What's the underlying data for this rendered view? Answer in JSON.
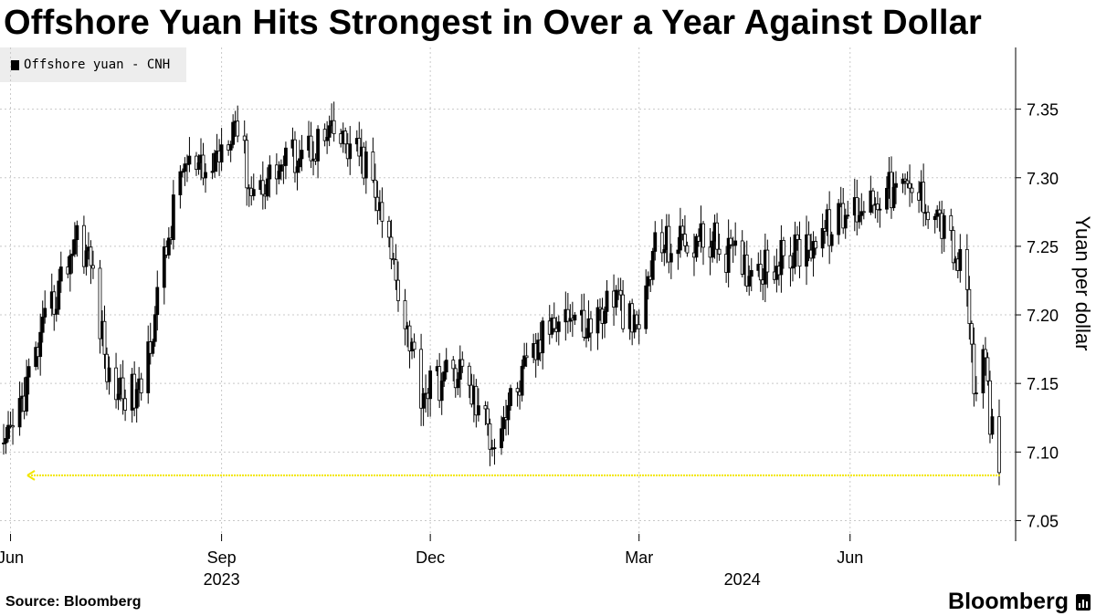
{
  "header": {
    "title": "Offshore Yuan Hits Strongest in Over a Year Against Dollar"
  },
  "legend": {
    "label": "Offshore yuan - CNH"
  },
  "footer": {
    "source": "Source: Bloomberg",
    "brand": "Bloomberg"
  },
  "colors": {
    "candle": "#000000",
    "reference_line": "#f2e600",
    "grid": "#c8c8c8",
    "legend_bg": "#ededed"
  },
  "chart_data": {
    "type": "candlestick",
    "title": "Offshore Yuan Hits Strongest in Over a Year Against Dollar",
    "series_name": "Offshore yuan - CNH",
    "ylabel": "Yuan per dollar",
    "y_axis_side": "right",
    "ylim": [
      7.035,
      7.395
    ],
    "yticks": [
      7.05,
      7.1,
      7.15,
      7.2,
      7.25,
      7.3,
      7.35
    ],
    "ytick_labels": [
      "7.05",
      "7.10",
      "7.15",
      "7.20",
      "7.25",
      "7.30",
      "7.35"
    ],
    "x_range": [
      "2023-05-29",
      "2024-08-05"
    ],
    "xticks": [
      {
        "date": "2023-06-01",
        "label": "Jun"
      },
      {
        "date": "2023-09-01",
        "label": "Sep"
      },
      {
        "date": "2023-12-01",
        "label": "Dec"
      },
      {
        "date": "2024-03-01",
        "label": "Mar"
      },
      {
        "date": "2024-06-01",
        "label": "Jun"
      }
    ],
    "year_labels": [
      {
        "year": "2023",
        "center_date": "2023-09-01"
      },
      {
        "year": "2024",
        "center_date": "2024-04-15"
      }
    ],
    "grid": {
      "x": "dotted",
      "y": "dotted"
    },
    "reference_line": {
      "value": 7.083,
      "style": "dotted",
      "note": "latest close level"
    },
    "anchors": [
      {
        "date": "2023-05-29",
        "close": 7.095
      },
      {
        "date": "2023-06-12",
        "close": 7.17
      },
      {
        "date": "2023-06-30",
        "close": 7.26
      },
      {
        "date": "2023-07-06",
        "close": 7.238
      },
      {
        "date": "2023-07-14",
        "close": 7.15
      },
      {
        "date": "2023-07-27",
        "close": 7.14
      },
      {
        "date": "2023-08-15",
        "close": 7.31
      },
      {
        "date": "2023-08-25",
        "close": 7.3
      },
      {
        "date": "2023-09-07",
        "close": 7.345
      },
      {
        "date": "2023-09-14",
        "close": 7.29
      },
      {
        "date": "2023-10-05",
        "close": 7.32
      },
      {
        "date": "2023-10-20",
        "close": 7.33
      },
      {
        "date": "2023-11-03",
        "close": 7.31
      },
      {
        "date": "2023-11-16",
        "close": 7.23
      },
      {
        "date": "2023-11-27",
        "close": 7.145
      },
      {
        "date": "2023-12-14",
        "close": 7.16
      },
      {
        "date": "2023-12-28",
        "close": 7.11
      },
      {
        "date": "2024-01-12",
        "close": 7.16
      },
      {
        "date": "2024-01-26",
        "close": 7.205
      },
      {
        "date": "2024-02-08",
        "close": 7.19
      },
      {
        "date": "2024-02-19",
        "close": 7.215
      },
      {
        "date": "2024-02-29",
        "close": 7.185
      },
      {
        "date": "2024-03-08",
        "close": 7.25
      },
      {
        "date": "2024-04-01",
        "close": 7.255
      },
      {
        "date": "2024-04-16",
        "close": 7.235
      },
      {
        "date": "2024-05-03",
        "close": 7.24
      },
      {
        "date": "2024-05-24",
        "close": 7.265
      },
      {
        "date": "2024-06-14",
        "close": 7.29
      },
      {
        "date": "2024-06-28",
        "close": 7.29
      },
      {
        "date": "2024-07-08",
        "close": 7.28
      },
      {
        "date": "2024-07-19",
        "close": 7.235
      },
      {
        "date": "2024-07-23",
        "close": 7.2
      },
      {
        "date": "2024-07-25",
        "close": 7.145
      },
      {
        "date": "2024-07-30",
        "close": 7.165
      },
      {
        "date": "2024-08-01",
        "close": 7.125
      },
      {
        "date": "2024-08-05",
        "close": 7.085
      }
    ]
  }
}
